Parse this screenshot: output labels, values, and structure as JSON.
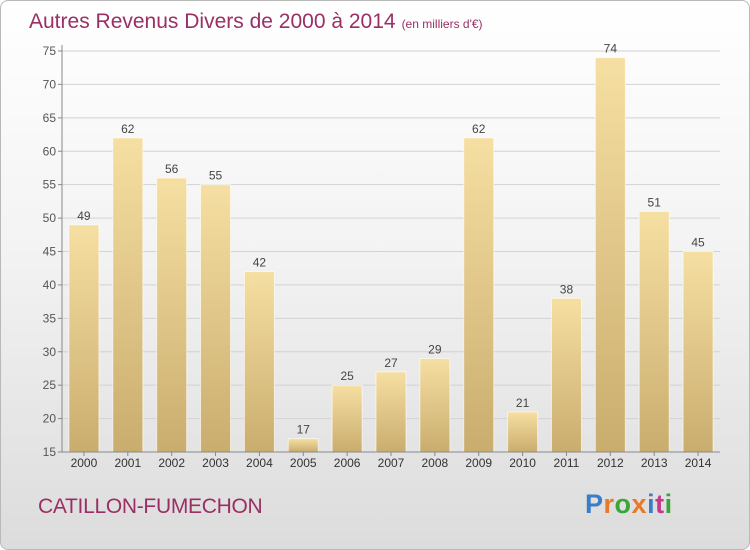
{
  "header": {
    "title": "Autres Revenus Divers de 2000 à 2014",
    "unit": "(en milliers d'€)"
  },
  "footer": {
    "place": "CATILLON-FUMECHON",
    "logo": {
      "text": "Proxiti",
      "colors": [
        "#3b7dc8",
        "#e8792b",
        "#3aa63a",
        "#e8792b",
        "#3b7dc8",
        "#c43a8a",
        "#3aa63a"
      ]
    }
  },
  "colors": {
    "bar_light": "#f6dfa2",
    "bar_dark": "#c9ad6e",
    "grid": "#d2d2d2",
    "text": "#555555",
    "accent": "#9a2f65"
  },
  "chart_data": {
    "type": "bar",
    "title": "Autres Revenus Divers de 2000 à 2014",
    "subtitle": "(en milliers d'€)",
    "categories": [
      "2000",
      "2001",
      "2002",
      "2003",
      "2004",
      "2005",
      "2006",
      "2007",
      "2008",
      "2009",
      "2010",
      "2011",
      "2012",
      "2013",
      "2014"
    ],
    "values": [
      49,
      62,
      56,
      55,
      42,
      17,
      25,
      27,
      29,
      62,
      21,
      38,
      74,
      51,
      45
    ],
    "ylim": [
      15,
      75
    ],
    "yticks": [
      15,
      20,
      25,
      30,
      35,
      40,
      45,
      50,
      55,
      60,
      65,
      70,
      75
    ],
    "grid": true,
    "data_labels": true
  }
}
